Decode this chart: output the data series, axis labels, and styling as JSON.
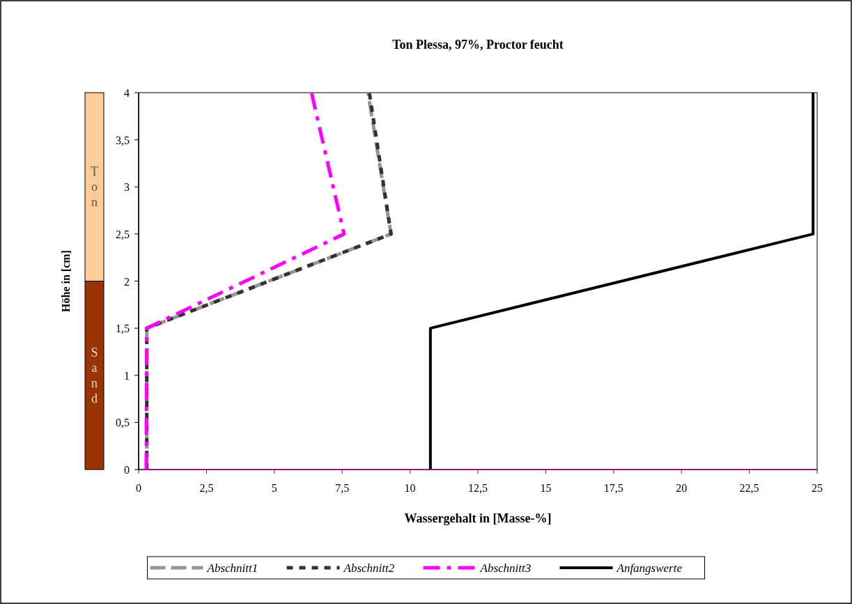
{
  "chart_data": {
    "type": "line",
    "title": "Ton Plessa, 97%, Proctor feucht",
    "xlabel": "Wassergehalt in [Masse-%]",
    "ylabel": "Höhe in [cm]",
    "xlim": [
      0,
      25
    ],
    "xticks": [
      0,
      {
        "value": 2.5,
        "label": "2,5"
      },
      5,
      {
        "value": 7.5,
        "label": "7,5"
      },
      10,
      {
        "value": 12.5,
        "label": "12,5"
      },
      15,
      {
        "value": 17.5,
        "label": "17,5"
      },
      20,
      {
        "value": 22.5,
        "label": "22,5"
      },
      25
    ],
    "ylim": [
      0,
      4
    ],
    "yticks": [
      0,
      {
        "value": 0.5,
        "label": "0,5"
      },
      1,
      {
        "value": 1.5,
        "label": "1,5"
      },
      2,
      {
        "value": 2.5,
        "label": "2,5"
      },
      3,
      {
        "value": 3.5,
        "label": "3,5"
      },
      4
    ],
    "grid": false,
    "legend": "bottom",
    "annotations": [
      "Ton",
      "Sand"
    ],
    "series": [
      {
        "name": "Abschnitt1",
        "color": "#969696",
        "line_style": "dashed",
        "x": [
          0.3,
          0.3,
          9.3,
          8.45
        ],
        "values": [
          0,
          1.5,
          2.5,
          4
        ]
      },
      {
        "name": "Abschnitt2",
        "color": "#333333",
        "line_style": "dotted",
        "x": [
          0.3,
          0.3,
          9.3,
          8.5
        ],
        "values": [
          0,
          1.5,
          2.5,
          4
        ]
      },
      {
        "name": "Abschnitt3",
        "color": "#ff00ff",
        "line_style": "dashdot",
        "x": [
          0.28,
          0.3,
          7.57,
          6.37
        ],
        "values": [
          0,
          1.5,
          2.5,
          4
        ]
      },
      {
        "name": "Anfangswerte",
        "color": "#000000",
        "line_style": "solid",
        "x": [
          10.75,
          10.75,
          24.85,
          24.85
        ],
        "values": [
          0,
          1.5,
          2.5,
          4
        ]
      }
    ]
  }
}
